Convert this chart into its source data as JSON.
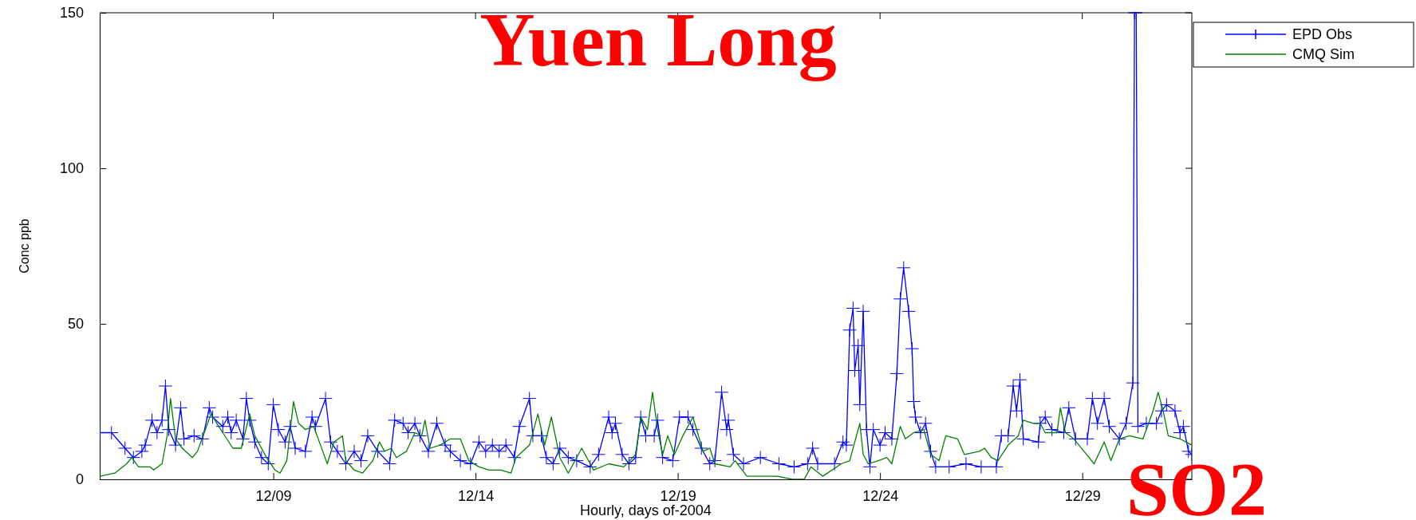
{
  "chart_data": {
    "type": "line",
    "xlabel": "Hourly, days of-2004",
    "ylabel": "Conc ppb",
    "annotations": [
      "Yuen Long",
      "SO2"
    ],
    "xlim": [
      "2004-12-04T17:00",
      "2004-12-31T17:00"
    ],
    "xticks": [
      {
        "value": "2004-12-09T00:00",
        "label": "12/09"
      },
      {
        "value": "2004-12-14T00:00",
        "label": "12/14"
      },
      {
        "value": "2004-12-19T00:00",
        "label": "12/19"
      },
      {
        "value": "2004-12-24T00:00",
        "label": "12/24"
      },
      {
        "value": "2004-12-29T00:00",
        "label": "12/29"
      }
    ],
    "ylim": [
      0,
      150
    ],
    "yticks": [
      0,
      50,
      100,
      150
    ],
    "grid": false,
    "legend": "top right",
    "series": [
      {
        "name": "EPD Obs",
        "color": "#0000ff",
        "marker": "cross",
        "x": [
          "2004-12-04T17:00",
          "2004-12-05T00:00",
          "2004-12-05T08:00",
          "2004-12-05T13:00",
          "2004-12-05T18:00",
          "2004-12-05T20:00",
          "2004-12-06T00:00",
          "2004-12-06T03:00",
          "2004-12-06T06:00",
          "2004-12-06T08:00",
          "2004-12-06T10:00",
          "2004-12-06T14:00",
          "2004-12-06T17:00",
          "2004-12-06T19:00",
          "2004-12-07T01:00",
          "2004-12-07T06:00",
          "2004-12-07T10:00",
          "2004-12-07T12:00",
          "2004-12-07T18:00",
          "2004-12-07T21:00",
          "2004-12-07T23:00",
          "2004-12-08T02:00",
          "2004-12-08T06:00",
          "2004-12-08T08:00",
          "2004-12-08T10:00",
          "2004-12-08T13:00",
          "2004-12-08T17:00",
          "2004-12-08T21:00",
          "2004-12-09T00:00",
          "2004-12-09T03:00",
          "2004-12-09T07:00",
          "2004-12-09T10:00",
          "2004-12-09T13:00",
          "2004-12-09T19:00",
          "2004-12-09T23:00",
          "2004-12-10T01:00",
          "2004-12-10T07:00",
          "2004-12-10T10:00",
          "2004-12-10T14:00",
          "2004-12-10T19:00",
          "2004-12-11T00:00",
          "2004-12-11T04:00",
          "2004-12-11T08:00",
          "2004-12-11T14:00",
          "2004-12-11T21:00",
          "2004-12-12T00:00",
          "2004-12-12T05:00",
          "2004-12-12T08:00",
          "2004-12-12T12:00",
          "2004-12-12T15:00",
          "2004-12-12T20:00",
          "2004-12-13T01:00",
          "2004-12-13T06:00",
          "2004-12-13T09:00",
          "2004-12-13T15:00",
          "2004-12-13T21:00",
          "2004-12-14T02:00",
          "2004-12-14T06:00",
          "2004-12-14T10:00",
          "2004-12-14T14:00",
          "2004-12-14T18:00",
          "2004-12-14T23:00",
          "2004-12-15T02:00",
          "2004-12-15T08:00",
          "2004-12-15T10:00",
          "2004-12-15T15:00",
          "2004-12-15T18:00",
          "2004-12-15T22:00",
          "2004-12-16T02:00",
          "2004-12-16T07:00",
          "2004-12-16T12:00",
          "2004-12-16T20:00",
          "2004-12-17T01:00",
          "2004-12-17T07:00",
          "2004-12-17T09:00",
          "2004-12-17T11:00",
          "2004-12-17T15:00",
          "2004-12-17T19:00",
          "2004-12-17T23:00",
          "2004-12-18T02:00",
          "2004-12-18T05:00",
          "2004-12-18T10:00",
          "2004-12-18T12:00",
          "2004-12-18T15:00",
          "2004-12-18T21:00",
          "2004-12-19T01:00",
          "2004-12-19T06:00",
          "2004-12-19T09:00",
          "2004-12-19T14:00",
          "2004-12-19T19:00",
          "2004-12-19T22:00",
          "2004-12-20T02:00",
          "2004-12-20T05:00",
          "2004-12-20T06:00",
          "2004-12-20T09:00",
          "2004-12-20T15:00",
          "2004-12-21T01:00",
          "2004-12-21T12:00",
          "2004-12-21T21:00",
          "2004-12-22T05:00",
          "2004-12-22T08:00",
          "2004-12-22T11:00",
          "2004-12-22T21:00",
          "2004-12-23T02:00",
          "2004-12-23T04:00",
          "2004-12-23T06:00",
          "2004-12-23T08:00",
          "2004-12-23T09:00",
          "2004-12-23T11:00",
          "2004-12-23T12:00",
          "2004-12-23T14:00",
          "2004-12-23T16:00",
          "2004-12-23T18:00",
          "2004-12-23T20:00",
          "2004-12-24T00:00",
          "2004-12-24T03:00",
          "2004-12-24T07:00",
          "2004-12-24T10:00",
          "2004-12-24T12:00",
          "2004-12-24T14:00",
          "2004-12-24T17:00",
          "2004-12-24T19:00",
          "2004-12-24T20:00",
          "2004-12-24T21:00",
          "2004-12-25T00:00",
          "2004-12-25T03:00",
          "2004-12-25T06:00",
          "2004-12-25T09:00",
          "2004-12-25T17:00",
          "2004-12-26T03:00",
          "2004-12-26T12:00",
          "2004-12-26T21:00",
          "2004-12-27T00:00",
          "2004-12-27T04:00",
          "2004-12-27T07:00",
          "2004-12-27T09:00",
          "2004-12-27T11:00",
          "2004-12-27T13:00",
          "2004-12-27T22:00",
          "2004-12-27T23:00",
          "2004-12-28T02:00",
          "2004-12-28T06:00",
          "2004-12-28T13:00",
          "2004-12-28T16:00",
          "2004-12-28T20:00",
          "2004-12-29T03:00",
          "2004-12-29T06:00",
          "2004-12-29T09:00",
          "2004-12-29T13:00",
          "2004-12-29T16:00",
          "2004-12-29T22:00",
          "2004-12-30T02:00",
          "2004-12-30T06:00",
          "2004-12-30T07:00",
          "2004-12-30T08:00",
          "2004-12-30T09:00",
          "2004-12-30T14:00",
          "2004-12-30T20:00",
          "2004-12-30T23:00",
          "2004-12-31T02:00",
          "2004-12-31T07:00",
          "2004-12-31T10:00",
          "2004-12-31T12:00",
          "2004-12-31T15:00",
          "2004-12-31T17:00"
        ],
        "values": [
          15,
          15,
          10,
          7,
          9,
          11,
          19,
          15,
          19,
          30,
          16,
          11,
          23,
          13,
          14,
          13,
          23,
          20,
          17,
          20,
          15,
          19,
          13,
          26,
          19,
          12,
          7,
          5,
          24,
          16,
          12,
          17,
          10,
          9,
          20,
          17,
          26,
          12,
          9,
          5,
          9,
          6,
          14,
          9,
          5,
          19,
          18,
          15,
          18,
          14,
          9,
          18,
          11,
          9,
          6,
          5,
          12,
          9,
          11,
          9,
          11,
          7,
          17,
          26,
          14,
          14,
          7,
          5,
          10,
          7,
          6,
          4,
          8,
          20,
          15,
          18,
          8,
          5,
          7,
          20,
          14,
          14,
          19,
          7,
          6,
          20,
          20,
          16,
          10,
          5,
          6,
          28,
          16,
          19,
          8,
          5,
          7,
          5,
          4,
          5,
          10,
          5,
          5,
          12,
          11,
          48,
          55,
          35,
          43,
          24,
          54,
          16,
          4,
          16,
          11,
          15,
          13,
          34,
          58,
          68,
          54,
          42,
          25,
          20,
          15,
          18,
          9,
          4,
          4,
          5,
          4,
          4,
          14,
          14,
          30,
          22,
          32,
          13,
          12,
          18,
          20,
          16,
          15,
          23,
          13,
          13,
          26,
          18,
          26,
          17,
          13,
          18,
          31,
          150,
          150,
          17,
          18,
          18,
          22,
          24,
          22,
          15,
          17,
          9,
          8
        ]
      },
      {
        "name": "CMQ Sim",
        "color": "#008000",
        "marker": "none",
        "x": [
          "2004-12-04T17:00",
          "2004-12-05T02:00",
          "2004-12-05T09:00",
          "2004-12-05T12:00",
          "2004-12-05T16:00",
          "2004-12-05T23:00",
          "2004-12-06T01:00",
          "2004-12-06T06:00",
          "2004-12-06T09:00",
          "2004-12-06T11:00",
          "2004-12-06T14:00",
          "2004-12-06T18:00",
          "2004-12-07T00:00",
          "2004-12-07T03:00",
          "2004-12-07T07:00",
          "2004-12-07T11:00",
          "2004-12-07T18:00",
          "2004-12-08T00:00",
          "2004-12-08T05:00",
          "2004-12-08T10:00",
          "2004-12-08T13:00",
          "2004-12-08T20:00",
          "2004-12-09T01:00",
          "2004-12-09T04:00",
          "2004-12-09T08:00",
          "2004-12-09T12:00",
          "2004-12-09T15:00",
          "2004-12-09T19:00",
          "2004-12-10T00:00",
          "2004-12-10T04:00",
          "2004-12-10T08:00",
          "2004-12-10T12:00",
          "2004-12-10T17:00",
          "2004-12-10T19:00",
          "2004-12-11T00:00",
          "2004-12-11T05:00",
          "2004-12-11T11:00",
          "2004-12-11T15:00",
          "2004-12-11T18:00",
          "2004-12-11T22:00",
          "2004-12-12T01:00",
          "2004-12-12T07:00",
          "2004-12-12T12:00",
          "2004-12-12T16:00",
          "2004-12-12T18:00",
          "2004-12-12T21:00",
          "2004-12-13T03:00",
          "2004-12-13T09:00",
          "2004-12-13T15:00",
          "2004-12-13T20:00",
          "2004-12-14T02:00",
          "2004-12-14T08:00",
          "2004-12-14T15:00",
          "2004-12-14T21:00",
          "2004-12-15T00:00",
          "2004-12-15T08:00",
          "2004-12-15T13:00",
          "2004-12-15T17:00",
          "2004-12-15T21:00",
          "2004-12-16T02:00",
          "2004-12-16T07:00",
          "2004-12-16T15:00",
          "2004-12-16T22:00",
          "2004-12-17T07:00",
          "2004-12-17T16:00",
          "2004-12-17T23:00",
          "2004-12-18T02:00",
          "2004-12-18T06:00",
          "2004-12-18T09:00",
          "2004-12-18T12:00",
          "2004-12-18T15:00",
          "2004-12-18T18:00",
          "2004-12-18T22:00",
          "2004-12-19T03:00",
          "2004-12-19T09:00",
          "2004-12-19T15:00",
          "2004-12-19T19:00",
          "2004-12-19T22:00",
          "2004-12-20T07:00",
          "2004-12-20T10:00",
          "2004-12-20T17:00",
          "2004-12-21T11:00",
          "2004-12-21T20:00",
          "2004-12-22T03:00",
          "2004-12-22T07:00",
          "2004-12-22T14:00",
          "2004-12-23T01:00",
          "2004-12-23T06:00",
          "2004-12-23T12:00",
          "2004-12-23T14:00",
          "2004-12-23T17:00",
          "2004-12-23T23:00",
          "2004-12-24T04:00",
          "2004-12-24T07:00",
          "2004-12-24T12:00",
          "2004-12-24T15:00",
          "2004-12-24T20:00",
          "2004-12-25T02:00",
          "2004-12-25T06:00",
          "2004-12-25T11:00",
          "2004-12-25T15:00",
          "2004-12-25T22:00",
          "2004-12-26T02:00",
          "2004-12-26T11:00",
          "2004-12-26T14:00",
          "2004-12-26T18:00",
          "2004-12-26T22:00",
          "2004-12-27T04:00",
          "2004-12-27T10:00",
          "2004-12-27T13:00",
          "2004-12-27T19:00",
          "2004-12-27T23:00",
          "2004-12-28T02:00",
          "2004-12-28T09:00",
          "2004-12-28T11:00",
          "2004-12-28T14:00",
          "2004-12-28T19:00",
          "2004-12-29T01:00",
          "2004-12-29T07:00",
          "2004-12-29T13:00",
          "2004-12-29T17:00",
          "2004-12-29T22:00",
          "2004-12-30T04:00",
          "2004-12-30T12:00",
          "2004-12-30T18:00",
          "2004-12-30T21:00",
          "2004-12-31T00:00",
          "2004-12-31T03:00",
          "2004-12-31T10:00",
          "2004-12-31T17:00"
        ],
        "values": [
          1,
          2,
          5,
          7,
          4,
          4,
          3,
          5,
          14,
          26,
          13,
          10,
          7,
          9,
          15,
          21,
          15,
          10,
          10,
          21,
          14,
          7,
          3,
          2,
          6,
          25,
          18,
          16,
          17,
          11,
          5,
          12,
          14,
          6,
          3,
          2,
          6,
          12,
          9,
          10,
          7,
          9,
          15,
          14,
          19,
          10,
          11,
          13,
          13,
          6,
          4,
          3,
          3,
          2,
          7,
          11,
          21,
          11,
          20,
          7,
          2,
          10,
          3,
          5,
          4,
          8,
          20,
          16,
          28,
          16,
          8,
          14,
          8,
          14,
          20,
          9,
          10,
          5,
          4,
          6,
          1,
          1,
          0,
          0,
          4,
          1,
          5,
          6,
          18,
          8,
          5,
          6,
          7,
          5,
          17,
          13,
          15,
          16,
          8,
          6,
          14,
          13,
          8,
          9,
          10,
          7,
          6,
          11,
          14,
          19,
          18,
          18,
          15,
          15,
          23,
          15,
          13,
          9,
          5,
          12,
          6,
          13,
          14,
          13,
          22,
          28,
          22,
          14,
          13,
          11
        ]
      }
    ]
  }
}
